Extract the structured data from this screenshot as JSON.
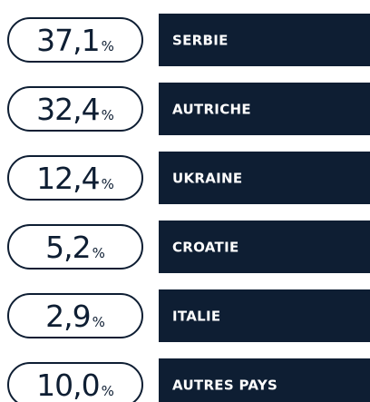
{
  "rows": [
    {
      "value": "37,1",
      "unit": "%",
      "label": "SERBIE"
    },
    {
      "value": "32,4",
      "unit": "%",
      "label": "AUTRICHE"
    },
    {
      "value": "12,4",
      "unit": "%",
      "label": "UKRAINE"
    },
    {
      "value": "5,2",
      "unit": "%",
      "label": "CROATIE"
    },
    {
      "value": "2,9",
      "unit": "%",
      "label": "ITALIE"
    },
    {
      "value": "10,0",
      "unit": "%",
      "label": "AUTRES PAYS"
    }
  ]
}
